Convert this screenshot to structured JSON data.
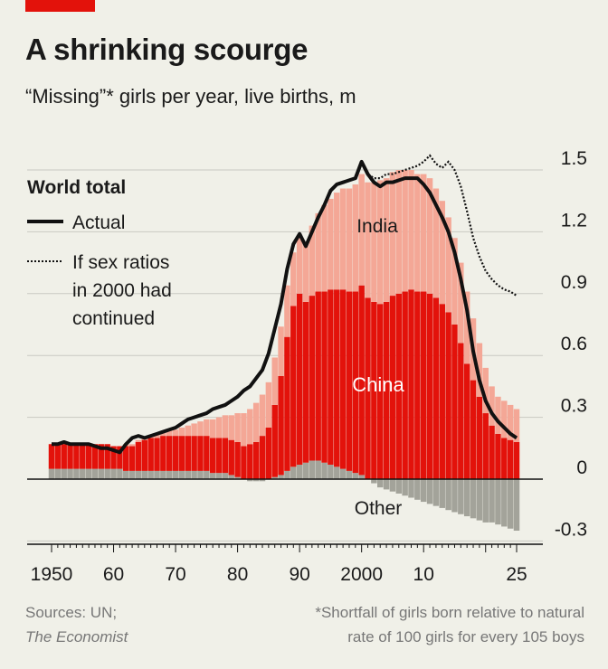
{
  "header": {
    "title": "A shrinking scourge",
    "subtitle": "“Missing”* girls per year, live births, m"
  },
  "legend": {
    "heading": "World total",
    "actual_label": "Actual",
    "projection_lines": [
      "If sex ratios",
      "in 2000 had",
      "continued"
    ]
  },
  "area_labels": {
    "india": "India",
    "china": "China",
    "other": "Other"
  },
  "colors": {
    "background": "#f0f0e8",
    "india": "#f4a796",
    "china": "#e3120b",
    "other": "#a3a39a",
    "line": "#111111",
    "brand": "#e3120b"
  },
  "chart_data": {
    "type": "area",
    "title": "A shrinking scourge",
    "subtitle": "“Missing”* girls per year, live births, m",
    "ylim": [
      -0.3,
      1.6
    ],
    "yticks": [
      -0.3,
      0,
      0.3,
      0.6,
      0.9,
      1.2,
      1.5
    ],
    "ytick_labels": [
      "-0.3",
      "0",
      "0.3",
      "0.6",
      "0.9",
      "1.2",
      "1.5"
    ],
    "xlim": [
      1950,
      2025
    ],
    "xticks": [
      1950,
      1960,
      1970,
      1980,
      1990,
      2000,
      2010,
      2025
    ],
    "xtick_labels": [
      "1950",
      "60",
      "70",
      "80",
      "90",
      "2000",
      "10",
      "25"
    ],
    "x": [
      1950,
      1951,
      1952,
      1953,
      1954,
      1955,
      1956,
      1957,
      1958,
      1959,
      1960,
      1961,
      1962,
      1963,
      1964,
      1965,
      1966,
      1967,
      1968,
      1969,
      1970,
      1971,
      1972,
      1973,
      1974,
      1975,
      1976,
      1977,
      1978,
      1979,
      1980,
      1981,
      1982,
      1983,
      1984,
      1985,
      1986,
      1987,
      1988,
      1989,
      1990,
      1991,
      1992,
      1993,
      1994,
      1995,
      1996,
      1997,
      1998,
      1999,
      2000,
      2001,
      2002,
      2003,
      2004,
      2005,
      2006,
      2007,
      2008,
      2009,
      2010,
      2011,
      2012,
      2013,
      2014,
      2015,
      2016,
      2017,
      2018,
      2019,
      2020,
      2021,
      2022,
      2023,
      2024,
      2025
    ],
    "series": [
      {
        "name": "Other",
        "values": [
          0.05,
          0.05,
          0.05,
          0.05,
          0.05,
          0.05,
          0.05,
          0.05,
          0.05,
          0.05,
          0.05,
          0.05,
          0.04,
          0.04,
          0.04,
          0.04,
          0.04,
          0.04,
          0.04,
          0.04,
          0.04,
          0.04,
          0.04,
          0.04,
          0.04,
          0.04,
          0.03,
          0.03,
          0.03,
          0.02,
          0.01,
          0.0,
          -0.01,
          -0.01,
          -0.01,
          0.0,
          0.01,
          0.02,
          0.04,
          0.06,
          0.07,
          0.08,
          0.09,
          0.09,
          0.08,
          0.07,
          0.06,
          0.05,
          0.04,
          0.03,
          0.02,
          0.0,
          -0.02,
          -0.04,
          -0.05,
          -0.06,
          -0.07,
          -0.08,
          -0.09,
          -0.1,
          -0.11,
          -0.12,
          -0.13,
          -0.14,
          -0.15,
          -0.16,
          -0.17,
          -0.18,
          -0.19,
          -0.2,
          -0.21,
          -0.21,
          -0.22,
          -0.23,
          -0.24,
          -0.25
        ]
      },
      {
        "name": "China",
        "values": [
          0.12,
          0.12,
          0.12,
          0.12,
          0.12,
          0.12,
          0.12,
          0.12,
          0.12,
          0.12,
          0.11,
          0.11,
          0.12,
          0.12,
          0.14,
          0.15,
          0.16,
          0.16,
          0.17,
          0.17,
          0.17,
          0.17,
          0.17,
          0.17,
          0.17,
          0.17,
          0.17,
          0.17,
          0.17,
          0.17,
          0.17,
          0.16,
          0.17,
          0.18,
          0.21,
          0.25,
          0.35,
          0.48,
          0.65,
          0.78,
          0.83,
          0.78,
          0.8,
          0.82,
          0.83,
          0.85,
          0.86,
          0.87,
          0.87,
          0.88,
          0.92,
          0.88,
          0.86,
          0.85,
          0.86,
          0.89,
          0.9,
          0.91,
          0.92,
          0.91,
          0.91,
          0.9,
          0.88,
          0.85,
          0.81,
          0.75,
          0.66,
          0.56,
          0.48,
          0.4,
          0.32,
          0.26,
          0.22,
          0.2,
          0.19,
          0.18
        ]
      },
      {
        "name": "India",
        "values": [
          0.0,
          0.0,
          0.0,
          0.0,
          0.0,
          0.0,
          0.0,
          0.0,
          0.0,
          0.0,
          0.0,
          0.0,
          0.01,
          0.01,
          0.01,
          0.01,
          0.01,
          0.02,
          0.02,
          0.03,
          0.03,
          0.04,
          0.05,
          0.06,
          0.07,
          0.08,
          0.09,
          0.1,
          0.11,
          0.12,
          0.14,
          0.16,
          0.17,
          0.19,
          0.2,
          0.22,
          0.23,
          0.24,
          0.25,
          0.26,
          0.27,
          0.29,
          0.34,
          0.38,
          0.42,
          0.44,
          0.47,
          0.49,
          0.5,
          0.52,
          0.54,
          0.56,
          0.58,
          0.6,
          0.6,
          0.6,
          0.6,
          0.59,
          0.58,
          0.57,
          0.57,
          0.56,
          0.53,
          0.5,
          0.46,
          0.42,
          0.39,
          0.35,
          0.3,
          0.26,
          0.22,
          0.19,
          0.18,
          0.18,
          0.17,
          0.16
        ]
      }
    ],
    "lines": [
      {
        "name": "Actual",
        "values": [
          0.17,
          0.17,
          0.18,
          0.17,
          0.17,
          0.17,
          0.17,
          0.16,
          0.15,
          0.15,
          0.14,
          0.13,
          0.17,
          0.2,
          0.21,
          0.2,
          0.21,
          0.22,
          0.23,
          0.24,
          0.25,
          0.27,
          0.29,
          0.3,
          0.31,
          0.32,
          0.34,
          0.35,
          0.36,
          0.38,
          0.4,
          0.43,
          0.45,
          0.49,
          0.53,
          0.61,
          0.73,
          0.85,
          1.02,
          1.14,
          1.19,
          1.13,
          1.2,
          1.27,
          1.33,
          1.4,
          1.43,
          1.44,
          1.45,
          1.46,
          1.54,
          1.48,
          1.44,
          1.42,
          1.44,
          1.44,
          1.45,
          1.46,
          1.46,
          1.46,
          1.43,
          1.39,
          1.33,
          1.27,
          1.2,
          1.1,
          0.97,
          0.82,
          0.62,
          0.48,
          0.38,
          0.32,
          0.28,
          0.25,
          0.22,
          0.2
        ]
      },
      {
        "name": "If sex ratios in 2000 had continued",
        "x_start": 2000,
        "values": [
          1.54,
          1.48,
          1.46,
          1.46,
          1.48,
          1.48,
          1.49,
          1.5,
          1.51,
          1.52,
          1.54,
          1.57,
          1.53,
          1.51,
          1.54,
          1.5,
          1.42,
          1.3,
          1.17,
          1.08,
          1.01,
          0.97,
          0.94,
          0.92,
          0.91,
          0.89
        ]
      }
    ]
  },
  "footer": {
    "source_label": "Sources: UN;",
    "source_publisher": "The Economist",
    "footnote_line1": "*Shortfall of girls born relative to natural",
    "footnote_line2": "rate of 100 girls for every 105 boys"
  }
}
